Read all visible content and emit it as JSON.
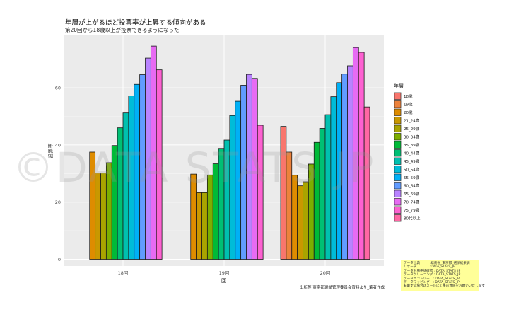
{
  "title": "年層が上がるほど投票率が上昇する傾向がある",
  "subtitle": "第20回から18歳以上が投票できるようになった",
  "source_note": "出所等:東京都選挙管理委員会資料より_筆者作成",
  "watermark": "©DATA STATS JP",
  "credit_lines": [
    "データ出典　　　:総務省_東京都_選挙結果調",
    "リサーチ　　　　:DATA_STATS_JP",
    "データ利用申請確認 : DATA_STATS_JP",
    "データクリーニング : DATA_STATS_JP",
    "データエントリー　: DATA_STATS_JP",
    "データマッピング　: DATA_STATS_JP",
    "転載する場合はメールにて事前連絡をお願いいたします"
  ],
  "colors": {
    "panel": "#ebebeb",
    "grid_major": "#ffffff",
    "grid_minor": "#f5f5f5",
    "credit_bg": "#ffff99"
  },
  "chart_data": {
    "type": "bar",
    "xlabel": "回",
    "ylabel": "投票率",
    "ylim": [
      0,
      76
    ],
    "yticks": [
      0,
      20,
      40,
      60
    ],
    "grid": true,
    "legend_title": "年層",
    "legend_position": "right",
    "categories": [
      "18回",
      "19回",
      "20回"
    ],
    "series": [
      {
        "name": "18歳",
        "color": "#F8766D",
        "values": [
          0,
          0,
          46.5
        ]
      },
      {
        "name": "19歳",
        "color": "#EC823C",
        "values": [
          0,
          0,
          37.5
        ]
      },
      {
        "name": "20歳",
        "color": "#DE8C00",
        "values": [
          37.5,
          29.8,
          29.4
        ]
      },
      {
        "name": "21_24歳",
        "color": "#C99800",
        "values": [
          30.2,
          23.3,
          25.7
        ]
      },
      {
        "name": "25_29歳",
        "color": "#A9A400",
        "values": [
          30.2,
          23.3,
          27.1
        ]
      },
      {
        "name": "30_34歳",
        "color": "#7CAE00",
        "values": [
          33.8,
          29.5,
          33.3
        ]
      },
      {
        "name": "35_39歳",
        "color": "#00BA38",
        "values": [
          39.8,
          33.4,
          40.9
        ]
      },
      {
        "name": "40_44歳",
        "color": "#00BF74",
        "values": [
          46.0,
          38.8,
          45.8
        ]
      },
      {
        "name": "45_49歳",
        "color": "#00C0AF",
        "values": [
          51.2,
          41.7,
          50.6
        ]
      },
      {
        "name": "50_54歳",
        "color": "#00BCD8",
        "values": [
          57.2,
          50.3,
          56.9
        ]
      },
      {
        "name": "55_59歳",
        "color": "#00B0F6",
        "values": [
          61.2,
          55.3,
          61.8
        ]
      },
      {
        "name": "60_64歳",
        "color": "#619CFF",
        "values": [
          64.6,
          60.9,
          64.8
        ]
      },
      {
        "name": "65_69歳",
        "color": "#B983FF",
        "values": [
          70.4,
          64.7,
          67.7
        ]
      },
      {
        "name": "70_74歳",
        "color": "#E76BF3",
        "values": [
          74.6,
          63.3,
          74.1
        ]
      },
      {
        "name": "75_79歳",
        "color": "#FD61D1",
        "values": [
          66.3,
          46.9,
          72.4
        ]
      },
      {
        "name": "80代以上",
        "color": "#FF67A4",
        "values": [
          0,
          0,
          53.3
        ]
      }
    ]
  }
}
